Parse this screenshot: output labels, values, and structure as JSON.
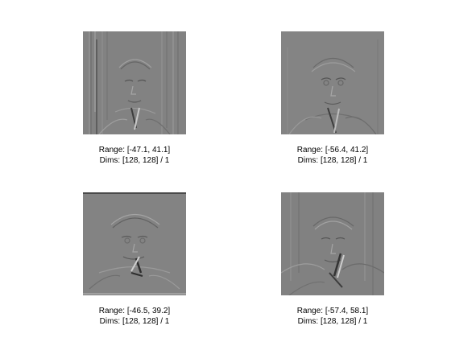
{
  "panels": [
    {
      "range": "Range: [-47.1, 41.1]",
      "dims": "Dims: [128, 128] / 1"
    },
    {
      "range": "Range: [-56.4, 41.2]",
      "dims": "Dims: [128, 128] / 1"
    },
    {
      "range": "Range: [-46.5, 39.2]",
      "dims": "Dims: [128, 128] / 1"
    },
    {
      "range": "Range: [-57.4, 58.1]",
      "dims": "Dims: [128, 128] / 1"
    }
  ],
  "colors": {
    "background": "#ffffff",
    "image_gray": "#808080",
    "text": "#000000"
  }
}
